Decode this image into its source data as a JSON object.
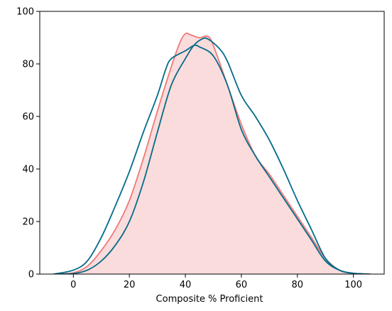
{
  "chart_data": {
    "type": "area",
    "title": "",
    "xlabel": "Composite % Proficient",
    "ylabel": "",
    "xlim": [
      -12,
      111
    ],
    "ylim": [
      0,
      100
    ],
    "xticks": [
      0,
      20,
      40,
      60,
      80,
      100
    ],
    "yticks": [
      0,
      20,
      40,
      60,
      80,
      100
    ],
    "grid": false,
    "legend": "none",
    "series": [
      {
        "color": "#f07878",
        "fill": "#fbdcdc",
        "filled": true,
        "x": [
          -6,
          0,
          5,
          10,
          15,
          20,
          25,
          30,
          35,
          38,
          40,
          42,
          45,
          48,
          50,
          55,
          60,
          65,
          70,
          75,
          80,
          85,
          90,
          95,
          100,
          105
        ],
        "y": [
          0,
          0.5,
          3,
          9,
          17,
          28,
          44,
          62,
          79,
          88,
          91.5,
          91,
          90,
          90.5,
          87,
          72,
          57,
          45,
          38,
          30,
          22,
          14,
          6,
          1.5,
          0.3,
          0
        ]
      },
      {
        "color": "#036b8a",
        "fill": "none",
        "filled": false,
        "x": [
          -7,
          0,
          5,
          10,
          15,
          20,
          25,
          30,
          33,
          35,
          40,
          43,
          45,
          50,
          55,
          60,
          65,
          70,
          75,
          80,
          85,
          90,
          95,
          100,
          106
        ],
        "y": [
          0,
          1.5,
          5,
          14,
          26,
          39,
          54,
          68,
          78,
          82,
          85,
          87,
          86.5,
          83,
          72,
          55,
          45,
          37,
          29,
          21,
          13,
          5,
          1.5,
          0.3,
          0
        ]
      },
      {
        "color": "#036b8a",
        "fill": "none",
        "filled": false,
        "x": [
          -6,
          0,
          5,
          10,
          15,
          20,
          25,
          30,
          35,
          40,
          43,
          46,
          48,
          52,
          55,
          60,
          65,
          70,
          75,
          80,
          85,
          90,
          95,
          100,
          105
        ],
        "y": [
          0,
          0.2,
          1.5,
          5,
          11,
          20,
          35,
          54,
          72,
          82,
          87,
          89.5,
          89.5,
          86,
          81,
          68,
          60,
          51,
          40,
          28,
          17,
          6,
          1.5,
          0.3,
          0
        ]
      }
    ]
  }
}
